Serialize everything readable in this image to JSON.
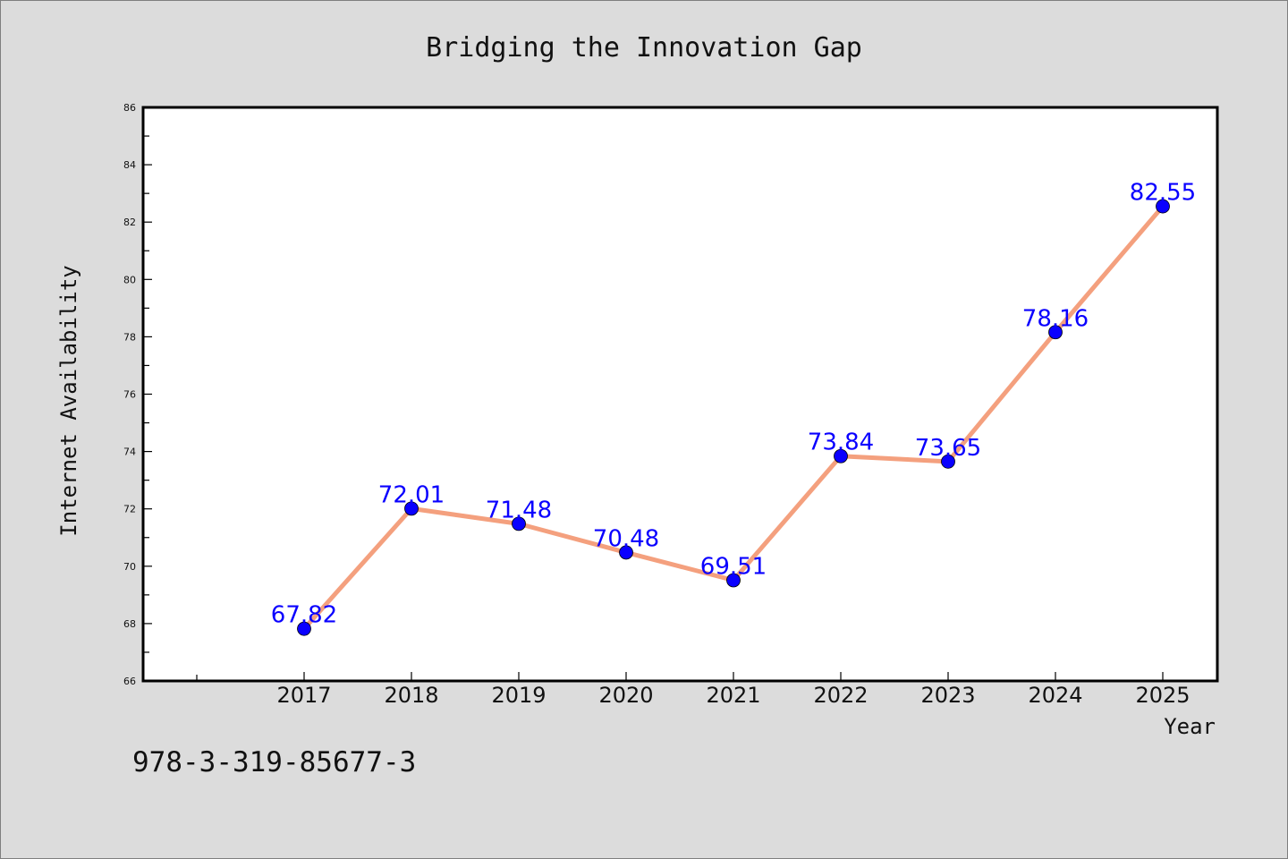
{
  "chart_data": {
    "type": "line",
    "title": "Bridging the Innovation Gap",
    "xlabel": "Year",
    "ylabel": "Internet Availability",
    "categories": [
      "2017",
      "2018",
      "2019",
      "2020",
      "2021",
      "2022",
      "2023",
      "2024",
      "2025"
    ],
    "series": [
      {
        "values": [
          67.82,
          72.01,
          71.48,
          70.48,
          69.51,
          73.84,
          73.65,
          78.16,
          82.55
        ]
      }
    ],
    "data_labels": [
      "67.82",
      "72.01",
      "71.48",
      "70.48",
      "69.51",
      "73.84",
      "73.65",
      "78.16",
      "82.55"
    ],
    "ylim": [
      66,
      86
    ],
    "y_ticks": [
      66,
      68,
      70,
      72,
      74,
      76,
      78,
      80,
      82,
      84,
      86
    ],
    "grid": false,
    "colors": {
      "line": "#f4a07e",
      "marker": "#0a00ff",
      "data_label": "#0a00ff"
    }
  },
  "footer": {
    "code": "978-3-319-85677-3"
  }
}
